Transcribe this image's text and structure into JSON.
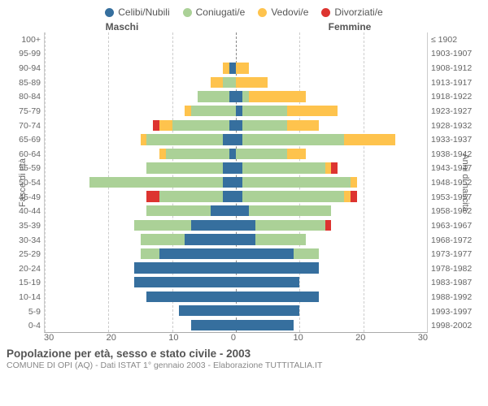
{
  "legend": [
    {
      "label": "Celibi/Nubili",
      "color": "#366f9e"
    },
    {
      "label": "Coniugati/e",
      "color": "#abd197"
    },
    {
      "label": "Vedovi/e",
      "color": "#fec34d"
    },
    {
      "label": "Divorziati/e",
      "color": "#dd3430"
    }
  ],
  "headers": {
    "male": "Maschi",
    "female": "Femmine"
  },
  "axis_labels": {
    "left": "Fasce di età",
    "right": "Anni di nascita"
  },
  "title": "Popolazione per età, sesso e stato civile - 2003",
  "subtitle": "COMUNE DI OPI (AQ) - Dati ISTAT 1° gennaio 2003 - Elaborazione TUTTITALIA.IT",
  "x_ticks_left": [
    "30",
    "20",
    "10",
    "0"
  ],
  "x_ticks_right": [
    "0",
    "10",
    "20",
    "30"
  ],
  "x_max": 30,
  "grid_step": 10,
  "colors": {
    "background": "#ffffff",
    "grid": "#cccccc",
    "axis": "#aaaaaa",
    "text": "#666666"
  },
  "rows": [
    {
      "age": "100+",
      "birth": "≤ 1902",
      "m": [
        0,
        0,
        0,
        0
      ],
      "f": [
        0,
        0,
        0,
        0
      ]
    },
    {
      "age": "95-99",
      "birth": "1903-1907",
      "m": [
        0,
        0,
        0,
        0
      ],
      "f": [
        0,
        0,
        0,
        0
      ]
    },
    {
      "age": "90-94",
      "birth": "1908-1912",
      "m": [
        1,
        0,
        1,
        0
      ],
      "f": [
        0,
        0,
        2,
        0
      ]
    },
    {
      "age": "85-89",
      "birth": "1913-1917",
      "m": [
        0,
        2,
        2,
        0
      ],
      "f": [
        0,
        0,
        5,
        0
      ]
    },
    {
      "age": "80-84",
      "birth": "1918-1922",
      "m": [
        1,
        5,
        0,
        0
      ],
      "f": [
        1,
        1,
        9,
        0
      ]
    },
    {
      "age": "75-79",
      "birth": "1923-1927",
      "m": [
        0,
        7,
        1,
        0
      ],
      "f": [
        1,
        7,
        8,
        0
      ]
    },
    {
      "age": "70-74",
      "birth": "1928-1932",
      "m": [
        1,
        9,
        2,
        1
      ],
      "f": [
        1,
        7,
        5,
        0
      ]
    },
    {
      "age": "65-69",
      "birth": "1933-1937",
      "m": [
        2,
        12,
        1,
        0
      ],
      "f": [
        1,
        16,
        8,
        0
      ]
    },
    {
      "age": "60-64",
      "birth": "1938-1942",
      "m": [
        1,
        10,
        1,
        0
      ],
      "f": [
        0,
        8,
        3,
        0
      ]
    },
    {
      "age": "55-59",
      "birth": "1943-1947",
      "m": [
        2,
        12,
        0,
        0
      ],
      "f": [
        1,
        13,
        1,
        1
      ]
    },
    {
      "age": "50-54",
      "birth": "1948-1952",
      "m": [
        2,
        21,
        0,
        0
      ],
      "f": [
        1,
        17,
        1,
        0
      ]
    },
    {
      "age": "45-49",
      "birth": "1953-1957",
      "m": [
        2,
        10,
        0,
        2
      ],
      "f": [
        1,
        16,
        1,
        1
      ]
    },
    {
      "age": "40-44",
      "birth": "1958-1962",
      "m": [
        4,
        10,
        0,
        0
      ],
      "f": [
        2,
        13,
        0,
        0
      ]
    },
    {
      "age": "35-39",
      "birth": "1963-1967",
      "m": [
        7,
        9,
        0,
        0
      ],
      "f": [
        3,
        11,
        0,
        1
      ]
    },
    {
      "age": "30-34",
      "birth": "1968-1972",
      "m": [
        8,
        7,
        0,
        0
      ],
      "f": [
        3,
        8,
        0,
        0
      ]
    },
    {
      "age": "25-29",
      "birth": "1973-1977",
      "m": [
        12,
        3,
        0,
        0
      ],
      "f": [
        9,
        4,
        0,
        0
      ]
    },
    {
      "age": "20-24",
      "birth": "1978-1982",
      "m": [
        16,
        0,
        0,
        0
      ],
      "f": [
        13,
        0,
        0,
        0
      ]
    },
    {
      "age": "15-19",
      "birth": "1983-1987",
      "m": [
        16,
        0,
        0,
        0
      ],
      "f": [
        10,
        0,
        0,
        0
      ]
    },
    {
      "age": "10-14",
      "birth": "1988-1992",
      "m": [
        14,
        0,
        0,
        0
      ],
      "f": [
        13,
        0,
        0,
        0
      ]
    },
    {
      "age": "5-9",
      "birth": "1993-1997",
      "m": [
        9,
        0,
        0,
        0
      ],
      "f": [
        10,
        0,
        0,
        0
      ]
    },
    {
      "age": "0-4",
      "birth": "1998-2002",
      "m": [
        7,
        0,
        0,
        0
      ],
      "f": [
        9,
        0,
        0,
        0
      ]
    }
  ]
}
